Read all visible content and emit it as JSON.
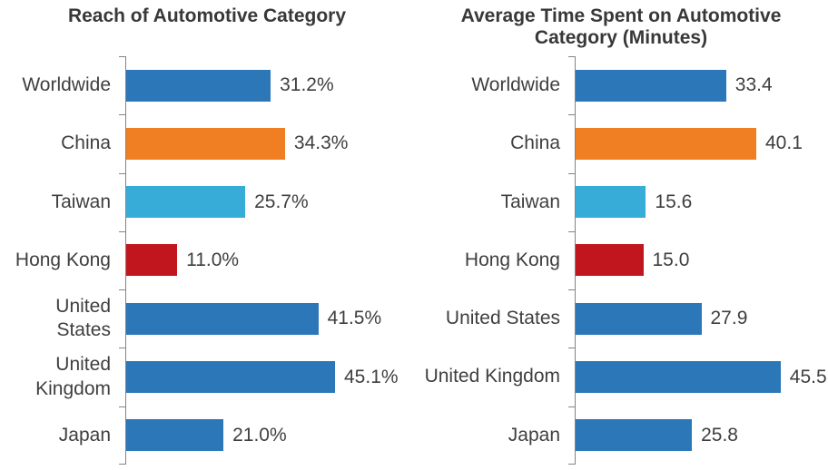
{
  "figure": {
    "description": "Two horizontal bar charts comparing automotive category engagement by region"
  },
  "colors": {
    "bar_blue": "#2B77B8",
    "bar_orange": "#F07F23",
    "bar_cyan": "#38ACD8",
    "bar_red": "#C2161E",
    "axis_gray": "#848484",
    "text_dark": "#3F3F3F",
    "title_dark": "#383838",
    "background": "#FFFFFF"
  },
  "chart_data": [
    {
      "type": "bar",
      "orientation": "horizontal",
      "title": "Reach of Automotive Category",
      "categories": [
        "Worldwide",
        "China",
        "Taiwan",
        "Hong Kong",
        "United States",
        "United Kingdom",
        "Japan"
      ],
      "values": [
        31.2,
        34.3,
        25.7,
        11.0,
        41.5,
        45.1,
        21.0
      ],
      "value_labels": [
        "31.2%",
        "34.3%",
        "25.7%",
        "11.0%",
        "41.5%",
        "45.1%",
        "21.0%"
      ],
      "unit": "percent",
      "xlim": [
        0,
        50
      ],
      "xlabel": "",
      "ylabel": "",
      "grid": false,
      "legend": false,
      "data_labels_position": "outside-end",
      "bar_colors": [
        "#2B77B8",
        "#F07F23",
        "#38ACD8",
        "#C2161E",
        "#2B77B8",
        "#2B77B8",
        "#2B77B8"
      ]
    },
    {
      "type": "bar",
      "orientation": "horizontal",
      "title": "Average Time Spent on Automotive Category (Minutes)",
      "categories": [
        "Worldwide",
        "China",
        "Taiwan",
        "Hong Kong",
        "United States",
        "United Kingdom",
        "Japan"
      ],
      "values": [
        33.4,
        40.1,
        15.6,
        15.0,
        27.9,
        45.5,
        25.8
      ],
      "value_labels": [
        "33.4",
        "40.1",
        "15.6",
        "15.0",
        "27.9",
        "45.5",
        "25.8"
      ],
      "unit": "minutes",
      "xlim": [
        0,
        55
      ],
      "xlabel": "",
      "ylabel": "",
      "grid": false,
      "legend": false,
      "data_labels_position": "outside-end",
      "bar_colors": [
        "#2B77B8",
        "#F07F23",
        "#38ACD8",
        "#C2161E",
        "#2B77B8",
        "#2B77B8",
        "#2B77B8"
      ]
    }
  ]
}
